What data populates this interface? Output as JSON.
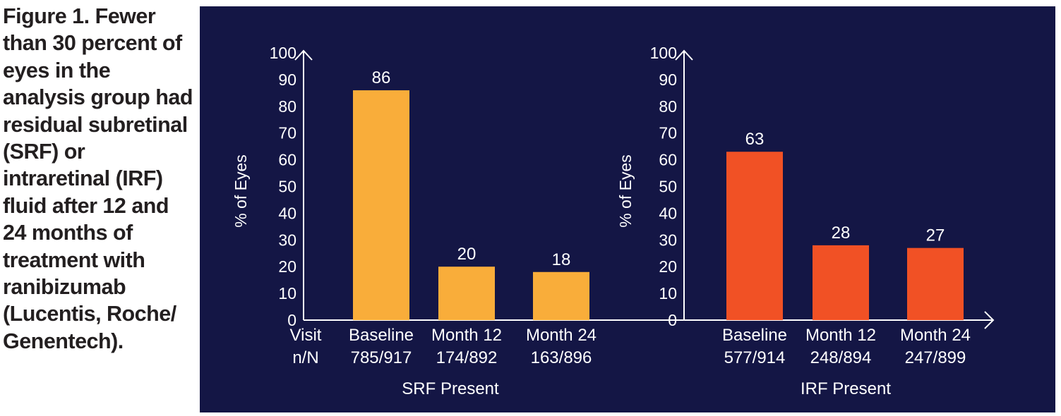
{
  "figure": {
    "caption": "Figure 1. Fewer than 30 percent of eyes in the analysis group had residual subretinal (SRF) or intraretinal (IRF) fluid after 12 and 24 months of treatment with ranibizumab (Lucentis, Roche/ Genentech).",
    "panel_color": "#141645"
  },
  "chart_data": [
    {
      "type": "bar",
      "title": "SRF Present",
      "ylabel": "% of Eyes",
      "ylim": [
        0,
        100
      ],
      "yticks": [
        0,
        10,
        20,
        30,
        40,
        50,
        60,
        70,
        80,
        90,
        100
      ],
      "row_label": [
        "Visit",
        "n/N"
      ],
      "categories": [
        "Baseline",
        "Month 12",
        "Month 24"
      ],
      "counts": [
        "785/917",
        "174/892",
        "163/896"
      ],
      "values": [
        86,
        20,
        18
      ],
      "color": "#f9ad3a"
    },
    {
      "type": "bar",
      "title": "IRF Present",
      "ylabel": "% of Eyes",
      "ylim": [
        0,
        100
      ],
      "yticks": [
        0,
        10,
        20,
        30,
        40,
        50,
        60,
        70,
        80,
        90,
        100
      ],
      "categories": [
        "Baseline",
        "Month 12",
        "Month 24"
      ],
      "counts": [
        "577/914",
        "248/894",
        "247/899"
      ],
      "values": [
        63,
        28,
        27
      ],
      "color": "#f15125"
    }
  ]
}
